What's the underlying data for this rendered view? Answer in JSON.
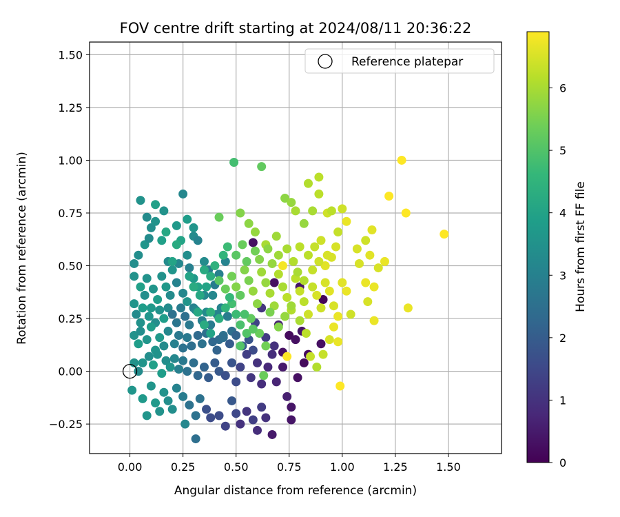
{
  "chart_data": {
    "type": "scatter",
    "title": "FOV centre drift starting at 2024/08/11 20:36:22",
    "xlabel": "Angular distance from reference (arcmin)",
    "ylabel": "Rotation from reference (arcmin)",
    "xlim": [
      -0.19,
      1.75
    ],
    "ylim": [
      -0.39,
      1.56
    ],
    "xticks": [
      "0.00",
      "0.25",
      "0.50",
      "0.75",
      "1.00",
      "1.25",
      "1.50"
    ],
    "yticks": [
      "−0.25",
      "0.00",
      "0.25",
      "0.50",
      "0.75",
      "1.00",
      "1.25",
      "1.50"
    ],
    "grid": true,
    "legend": {
      "position": "top-right",
      "entries": [
        {
          "label": "Reference platepar",
          "marker": "open-circle",
          "x": 0,
          "y": 0
        }
      ]
    },
    "colorbar": {
      "label": "Hours from first FF file",
      "colormap": "viridis",
      "range": [
        0,
        6.9
      ],
      "ticks": [
        "0",
        "1",
        "2",
        "3",
        "4",
        "5",
        "6"
      ]
    },
    "marker_color_scale": [
      "#440154",
      "#482878",
      "#3e4989",
      "#31688e",
      "#26828e",
      "#1f9e89",
      "#35b779",
      "#6ece58",
      "#b5de2b",
      "#fde725"
    ],
    "points": [
      [
        0.05,
        0.81,
        3.5
      ],
      [
        0.08,
        0.73,
        3.3
      ],
      [
        0.12,
        0.79,
        3.9
      ],
      [
        0.16,
        0.76,
        3.5
      ],
      [
        0.25,
        0.84,
        3.2
      ],
      [
        0.27,
        0.72,
        3.8
      ],
      [
        0.22,
        0.69,
        3.7
      ],
      [
        0.3,
        0.68,
        3.6
      ],
      [
        0.3,
        0.64,
        3.3
      ],
      [
        0.32,
        0.62,
        3.1
      ],
      [
        0.02,
        0.51,
        3.4
      ],
      [
        0.04,
        0.55,
        3.4
      ],
      [
        0.07,
        0.6,
        3.6
      ],
      [
        0.09,
        0.63,
        3.3
      ],
      [
        0.1,
        0.68,
        3.4
      ],
      [
        0.12,
        0.71,
        3.5
      ],
      [
        0.15,
        0.62,
        3.9
      ],
      [
        0.18,
        0.52,
        3.3
      ],
      [
        0.2,
        0.48,
        3.6
      ],
      [
        0.23,
        0.51,
        3.2
      ],
      [
        0.24,
        0.62,
        4.0
      ],
      [
        0.27,
        0.55,
        3.4
      ],
      [
        0.28,
        0.49,
        3.0
      ],
      [
        0.3,
        0.44,
        3.7
      ],
      [
        0.35,
        0.52,
        3.3
      ],
      [
        0.02,
        0.45,
        3.5
      ],
      [
        0.05,
        0.4,
        3.9
      ],
      [
        0.07,
        0.36,
        3.4
      ],
      [
        0.08,
        0.44,
        3.5
      ],
      [
        0.11,
        0.39,
        3.6
      ],
      [
        0.13,
        0.34,
        3.8
      ],
      [
        0.15,
        0.45,
        3.5
      ],
      [
        0.17,
        0.4,
        3.7
      ],
      [
        0.19,
        0.36,
        3.3
      ],
      [
        0.22,
        0.42,
        3.1
      ],
      [
        0.25,
        0.37,
        3.2
      ],
      [
        0.27,
        0.33,
        3.6
      ],
      [
        0.3,
        0.3,
        3.0
      ],
      [
        0.32,
        0.4,
        4.0
      ],
      [
        0.35,
        0.36,
        3.2
      ],
      [
        0.37,
        0.48,
        2.9
      ],
      [
        0.4,
        0.41,
        2.9
      ],
      [
        0.42,
        0.46,
        3.0
      ],
      [
        0.45,
        0.52,
        3.1
      ],
      [
        0.39,
        0.36,
        3.2
      ],
      [
        0.02,
        0.32,
        3.6
      ],
      [
        0.03,
        0.27,
        3.3
      ],
      [
        0.05,
        0.23,
        3.5
      ],
      [
        0.06,
        0.3,
        3.8
      ],
      [
        0.09,
        0.26,
        3.6
      ],
      [
        0.1,
        0.3,
        3.7
      ],
      [
        0.12,
        0.23,
        3.4
      ],
      [
        0.14,
        0.29,
        3.5
      ],
      [
        0.16,
        0.25,
        3.8
      ],
      [
        0.18,
        0.3,
        3.3
      ],
      [
        0.2,
        0.27,
        2.6
      ],
      [
        0.22,
        0.23,
        2.7
      ],
      [
        0.24,
        0.3,
        2.9
      ],
      [
        0.26,
        0.26,
        2.5
      ],
      [
        0.28,
        0.22,
        2.8
      ],
      [
        0.31,
        0.29,
        3.2
      ],
      [
        0.34,
        0.24,
        3.0
      ],
      [
        0.36,
        0.28,
        3.3
      ],
      [
        0.38,
        0.22,
        2.9
      ],
      [
        0.41,
        0.27,
        3.1
      ],
      [
        0.43,
        0.3,
        3.1
      ],
      [
        0.46,
        0.26,
        2.9
      ],
      [
        0.48,
        0.19,
        2.5
      ],
      [
        0.44,
        0.17,
        2.6
      ],
      [
        0.42,
        0.15,
        2.4
      ],
      [
        0.02,
        0.17,
        3.5
      ],
      [
        0.04,
        0.13,
        3.8
      ],
      [
        0.05,
        0.19,
        3.4
      ],
      [
        0.08,
        0.15,
        3.6
      ],
      [
        0.1,
        0.21,
        3.8
      ],
      [
        0.12,
        0.1,
        3.6
      ],
      [
        0.14,
        0.16,
        3.7
      ],
      [
        0.16,
        0.12,
        3.3
      ],
      [
        0.18,
        0.19,
        3.2
      ],
      [
        0.21,
        0.13,
        3.0
      ],
      [
        0.23,
        0.17,
        2.8
      ],
      [
        0.25,
        0.11,
        2.6
      ],
      [
        0.27,
        0.16,
        2.8
      ],
      [
        0.29,
        0.12,
        2.5
      ],
      [
        0.32,
        0.17,
        2.4
      ],
      [
        0.34,
        0.13,
        2.6
      ],
      [
        0.36,
        0.18,
        2.5
      ],
      [
        0.39,
        0.14,
        2.3
      ],
      [
        0.41,
        0.1,
        2.2
      ],
      [
        0.44,
        0.16,
        2.5
      ],
      [
        0.47,
        0.13,
        2.0
      ],
      [
        0.5,
        0.17,
        2.2
      ],
      [
        0.53,
        0.12,
        2.0
      ],
      [
        0.56,
        0.15,
        1.8
      ],
      [
        0.58,
        0.1,
        1.6
      ],
      [
        0.02,
        0.04,
        3.5
      ],
      [
        0.04,
        0.0,
        3.3
      ],
      [
        0.06,
        0.04,
        3.6
      ],
      [
        0.09,
        0.07,
        3.4
      ],
      [
        0.11,
        0.03,
        3.9
      ],
      [
        0.13,
        0.08,
        3.5
      ],
      [
        0.15,
        -0.01,
        3.8
      ],
      [
        0.17,
        0.05,
        3.4
      ],
      [
        0.19,
        0.02,
        3.6
      ],
      [
        0.21,
        0.06,
        3.2
      ],
      [
        0.23,
        0.01,
        3.0
      ],
      [
        0.25,
        0.05,
        2.8
      ],
      [
        0.27,
        0.0,
        2.6
      ],
      [
        0.3,
        0.04,
        2.5
      ],
      [
        0.32,
        -0.02,
        2.3
      ],
      [
        0.35,
        0.02,
        2.2
      ],
      [
        0.37,
        -0.03,
        2.0
      ],
      [
        0.4,
        0.04,
        2.0
      ],
      [
        0.42,
        0.0,
        1.9
      ],
      [
        0.45,
        -0.02,
        1.7
      ],
      [
        0.01,
        -0.09,
        3.6
      ],
      [
        0.06,
        -0.13,
        3.7
      ],
      [
        0.08,
        -0.21,
        3.6
      ],
      [
        0.1,
        -0.07,
        3.6
      ],
      [
        0.12,
        -0.15,
        3.7
      ],
      [
        0.14,
        -0.19,
        3.5
      ],
      [
        0.16,
        -0.1,
        3.5
      ],
      [
        0.18,
        -0.14,
        3.4
      ],
      [
        0.2,
        -0.18,
        3.4
      ],
      [
        0.22,
        -0.08,
        3.1
      ],
      [
        0.25,
        -0.12,
        2.9
      ],
      [
        0.26,
        -0.25,
        3.2
      ],
      [
        0.28,
        -0.16,
        2.6
      ],
      [
        0.31,
        -0.21,
        2.6
      ],
      [
        0.33,
        -0.13,
        2.6
      ],
      [
        0.36,
        -0.18,
        1.7
      ],
      [
        0.38,
        -0.22,
        1.6
      ],
      [
        0.31,
        -0.32,
        2.5
      ],
      [
        0.42,
        -0.21,
        1.6
      ],
      [
        0.45,
        -0.26,
        1.4
      ],
      [
        0.48,
        -0.14,
        1.9
      ],
      [
        0.5,
        -0.2,
        1.5
      ],
      [
        0.52,
        -0.25,
        1.0
      ],
      [
        0.55,
        -0.19,
        1.1
      ],
      [
        0.58,
        -0.23,
        1.3
      ],
      [
        0.6,
        -0.28,
        0.9
      ],
      [
        0.62,
        -0.17,
        1.2
      ],
      [
        0.67,
        -0.3,
        0.5
      ],
      [
        0.64,
        -0.22,
        1.0
      ],
      [
        0.76,
        -0.23,
        0.4
      ],
      [
        0.48,
        0.04,
        1.8
      ],
      [
        0.5,
        -0.05,
        1.6
      ],
      [
        0.52,
        0.02,
        1.4
      ],
      [
        0.55,
        0.08,
        1.3
      ],
      [
        0.57,
        -0.03,
        1.1
      ],
      [
        0.6,
        0.04,
        1.0
      ],
      [
        0.62,
        -0.06,
        0.9
      ],
      [
        0.65,
        0.02,
        0.8
      ],
      [
        0.67,
        0.08,
        0.9
      ],
      [
        0.69,
        -0.05,
        0.7
      ],
      [
        0.72,
        0.02,
        0.5
      ],
      [
        0.74,
        -0.12,
        0.6
      ],
      [
        0.76,
        -0.17,
        0.4
      ],
      [
        0.79,
        -0.03,
        0.3
      ],
      [
        0.82,
        0.04,
        0.2
      ],
      [
        0.59,
        0.23,
        1.4
      ],
      [
        0.62,
        0.3,
        1.1
      ],
      [
        0.64,
        0.16,
        1.2
      ],
      [
        0.68,
        0.12,
        1.0
      ],
      [
        0.7,
        0.22,
        0.6
      ],
      [
        0.72,
        0.09,
        0.3
      ],
      [
        0.75,
        0.17,
        0.2
      ],
      [
        0.78,
        0.15,
        0.3
      ],
      [
        0.81,
        0.19,
        0.4
      ],
      [
        0.84,
        0.08,
        0.2
      ],
      [
        0.9,
        0.13,
        0.3
      ],
      [
        0.91,
        0.34,
        0.1
      ],
      [
        0.8,
        0.4,
        0.4
      ],
      [
        0.58,
        0.61,
        0.3
      ],
      [
        0.68,
        0.42,
        0.3
      ],
      [
        0.2,
        0.52,
        4.0
      ],
      [
        0.22,
        0.6,
        4.2
      ],
      [
        0.17,
        0.66,
        4.1
      ],
      [
        0.42,
        0.73,
        5.3
      ],
      [
        0.49,
        0.99,
        4.8
      ],
      [
        0.62,
        0.97,
        5.2
      ],
      [
        0.52,
        0.75,
        5.6
      ],
      [
        0.56,
        0.7,
        5.7
      ],
      [
        0.59,
        0.66,
        5.8
      ],
      [
        0.64,
        0.6,
        6.0
      ],
      [
        0.69,
        0.64,
        5.9
      ],
      [
        0.73,
        0.82,
        5.7
      ],
      [
        0.76,
        0.8,
        5.8
      ],
      [
        0.78,
        0.76,
        6.0
      ],
      [
        0.82,
        0.7,
        5.8
      ],
      [
        0.86,
        0.76,
        6.0
      ],
      [
        0.89,
        0.84,
        6.2
      ],
      [
        0.93,
        0.75,
        6.4
      ],
      [
        0.98,
        0.66,
        6.3
      ],
      [
        0.84,
        0.89,
        6.1
      ],
      [
        0.89,
        0.92,
        6.2
      ],
      [
        0.95,
        0.76,
        6.2
      ],
      [
        1.0,
        0.77,
        6.4
      ],
      [
        1.02,
        0.71,
        6.7
      ],
      [
        1.07,
        0.58,
        6.5
      ],
      [
        1.11,
        0.62,
        6.4
      ],
      [
        1.14,
        0.67,
        6.6
      ],
      [
        1.17,
        0.49,
        6.5
      ],
      [
        1.13,
        0.55,
        6.6
      ],
      [
        1.2,
        0.52,
        6.7
      ],
      [
        1.08,
        0.51,
        6.5
      ],
      [
        1.11,
        0.42,
        6.7
      ],
      [
        1.15,
        0.4,
        6.7
      ],
      [
        1.12,
        0.33,
        6.5
      ],
      [
        1.15,
        0.24,
        6.7
      ],
      [
        1.22,
        0.83,
        6.9
      ],
      [
        1.28,
        1.0,
        6.9
      ],
      [
        1.3,
        0.75,
        6.9
      ],
      [
        1.31,
        0.3,
        6.7
      ],
      [
        1.48,
        0.65,
        6.9
      ],
      [
        0.42,
        0.43,
        5.1
      ],
      [
        0.45,
        0.39,
        5.3
      ],
      [
        0.48,
        0.45,
        5.4
      ],
      [
        0.5,
        0.4,
        5.6
      ],
      [
        0.52,
        0.36,
        5.2
      ],
      [
        0.54,
        0.48,
        5.6
      ],
      [
        0.56,
        0.43,
        5.5
      ],
      [
        0.58,
        0.38,
        5.8
      ],
      [
        0.6,
        0.32,
        5.7
      ],
      [
        0.62,
        0.47,
        5.9
      ],
      [
        0.64,
        0.42,
        5.8
      ],
      [
        0.66,
        0.37,
        6.0
      ],
      [
        0.68,
        0.31,
        5.9
      ],
      [
        0.7,
        0.46,
        6.1
      ],
      [
        0.72,
        0.4,
        6.0
      ],
      [
        0.74,
        0.35,
        6.2
      ],
      [
        0.76,
        0.29,
        6.1
      ],
      [
        0.78,
        0.44,
        6.2
      ],
      [
        0.8,
        0.38,
        6.3
      ],
      [
        0.82,
        0.33,
        6.2
      ],
      [
        0.84,
        0.27,
        6.4
      ],
      [
        0.86,
        0.4,
        6.3
      ],
      [
        0.88,
        0.36,
        6.5
      ],
      [
        0.9,
        0.3,
        6.4
      ],
      [
        0.92,
        0.42,
        6.5
      ],
      [
        0.94,
        0.38,
        6.6
      ],
      [
        0.96,
        0.31,
        6.5
      ],
      [
        0.98,
        0.26,
        6.7
      ],
      [
        1.0,
        0.42,
        6.6
      ],
      [
        1.02,
        0.38,
        6.7
      ],
      [
        0.48,
        0.32,
        4.8
      ],
      [
        0.5,
        0.27,
        4.7
      ],
      [
        0.52,
        0.22,
        4.9
      ],
      [
        0.55,
        0.18,
        5.0
      ],
      [
        0.57,
        0.25,
        5.2
      ],
      [
        0.61,
        0.18,
        5.3
      ],
      [
        0.64,
        0.12,
        5.4
      ],
      [
        0.66,
        0.28,
        5.5
      ],
      [
        0.7,
        0.21,
        5.6
      ],
      [
        0.73,
        0.26,
        5.8
      ],
      [
        0.74,
        0.07,
        6.9
      ],
      [
        0.76,
        0.31,
        5.9
      ],
      [
        0.8,
        0.24,
        6.0
      ],
      [
        0.83,
        0.18,
        6.2
      ],
      [
        0.85,
        0.07,
        6.3
      ],
      [
        0.88,
        0.02,
        6.1
      ],
      [
        0.91,
        0.08,
        6.3
      ],
      [
        0.94,
        0.15,
        6.5
      ],
      [
        0.96,
        0.21,
        6.7
      ],
      [
        0.99,
        -0.07,
        6.9
      ],
      [
        0.98,
        0.14,
        6.7
      ],
      [
        1.04,
        0.27,
        6.4
      ],
      [
        0.92,
        0.5,
        6.6
      ],
      [
        0.95,
        0.54,
        6.5
      ],
      [
        0.72,
        0.5,
        6.8
      ],
      [
        0.5,
        0.55,
        5.1
      ],
      [
        0.53,
        0.6,
        5.3
      ],
      [
        0.55,
        0.52,
        5.2
      ],
      [
        0.59,
        0.57,
        5.4
      ],
      [
        0.61,
        0.53,
        5.6
      ],
      [
        0.65,
        0.58,
        5.7
      ],
      [
        0.67,
        0.51,
        5.8
      ],
      [
        0.7,
        0.55,
        5.9
      ],
      [
        0.74,
        0.58,
        6.0
      ],
      [
        0.77,
        0.52,
        6.1
      ],
      [
        0.8,
        0.59,
        6.2
      ],
      [
        0.84,
        0.55,
        6.2
      ],
      [
        0.87,
        0.59,
        6.3
      ],
      [
        0.9,
        0.62,
        6.4
      ],
      [
        0.93,
        0.55,
        6.5
      ],
      [
        0.97,
        0.59,
        6.5
      ],
      [
        0.79,
        0.47,
        6.0
      ],
      [
        0.82,
        0.43,
        6.1
      ],
      [
        0.86,
        0.48,
        6.3
      ],
      [
        0.89,
        0.52,
        6.4
      ],
      [
        0.35,
        0.48,
        4.2
      ],
      [
        0.38,
        0.45,
        4.3
      ],
      [
        0.4,
        0.5,
        4.4
      ],
      [
        0.36,
        0.4,
        4.0
      ],
      [
        0.33,
        0.36,
        4.1
      ],
      [
        0.3,
        0.4,
        4.2
      ],
      [
        0.28,
        0.45,
        4.0
      ],
      [
        0.44,
        0.55,
        4.5
      ],
      [
        0.46,
        0.59,
        4.7
      ],
      [
        0.47,
        0.35,
        4.6
      ],
      [
        0.45,
        0.3,
        4.5
      ],
      [
        0.42,
        0.25,
        4.3
      ],
      [
        0.38,
        0.28,
        4.4
      ],
      [
        0.35,
        0.22,
        4.2
      ],
      [
        0.32,
        0.28,
        4.1
      ],
      [
        0.38,
        0.18,
        4.0
      ],
      [
        0.52,
        0.12,
        5.0
      ],
      [
        0.54,
        0.27,
        4.9
      ],
      [
        0.58,
        0.2,
        5.1
      ],
      [
        0.63,
        -0.02,
        5.3
      ]
    ]
  }
}
